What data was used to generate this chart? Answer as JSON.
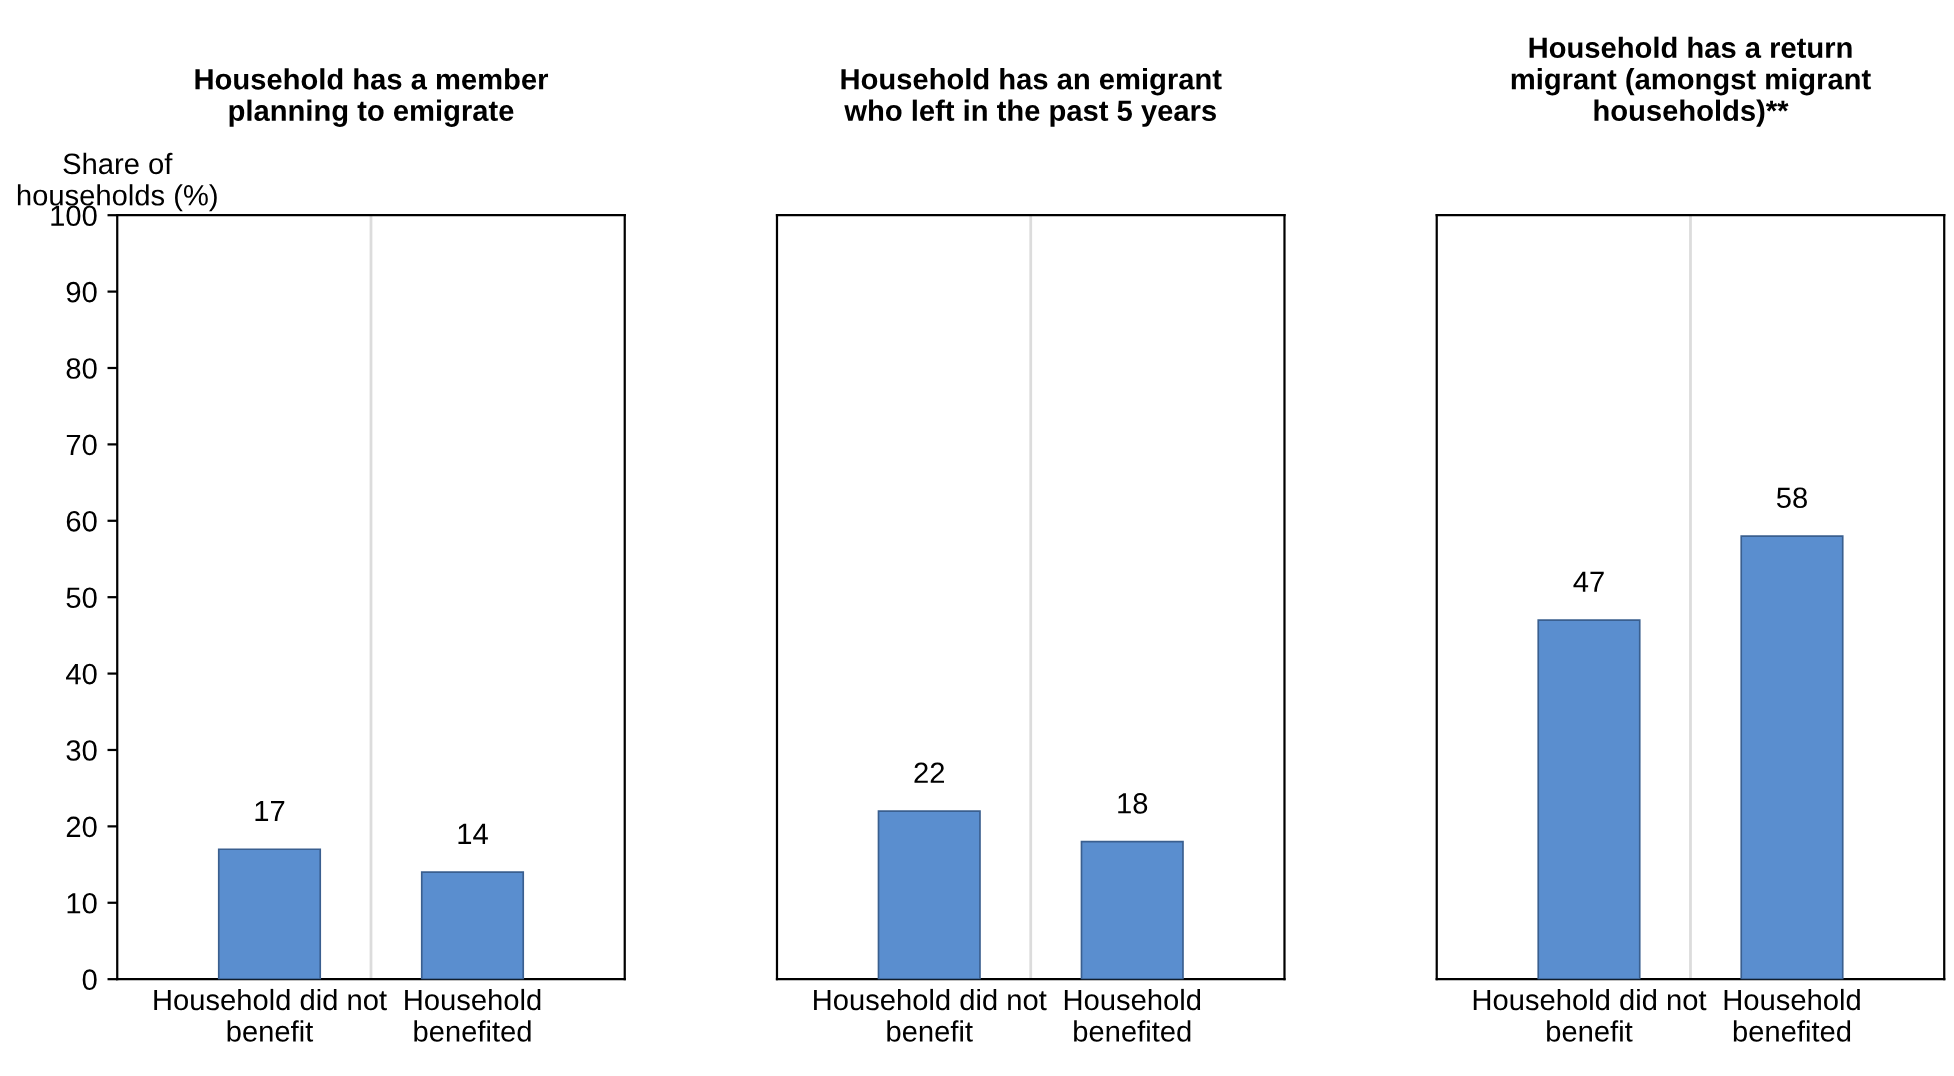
{
  "chart_data": [
    {
      "type": "bar",
      "title": "Household has a member\nplanning to emigrate",
      "ylabel": "Share of\nhouseholds (%)",
      "categories": [
        "Household did not\nbenefit",
        "Household\nbenefited"
      ],
      "values": [
        17,
        14
      ],
      "color": "#5a8ecf",
      "ylim": [
        0,
        100
      ],
      "yticks": [
        0,
        10,
        20,
        30,
        40,
        50,
        60,
        70,
        80,
        90,
        100
      ],
      "data_labels": true,
      "grid": "x"
    },
    {
      "type": "bar",
      "title": "Household has an emigrant\nwho left in the past 5 years",
      "categories": [
        "Household did not\nbenefit",
        "Household\nbenefited"
      ],
      "values": [
        22,
        18
      ],
      "color": "#5a8ecf",
      "ylim": [
        0,
        100
      ],
      "yticks": [
        0,
        10,
        20,
        30,
        40,
        50,
        60,
        70,
        80,
        90,
        100
      ],
      "data_labels": true,
      "grid": "x",
      "tick_labels": "x"
    },
    {
      "type": "bar",
      "title": "Household has a return\nmigrant (amongst migrant\nhouseholds)**",
      "categories": [
        "Household did not\nbenefit",
        "Household\nbenefited"
      ],
      "values": [
        47,
        58
      ],
      "color": "#5a8ecf",
      "ylim": [
        0,
        100
      ],
      "yticks": [
        0,
        10,
        20,
        30,
        40,
        50,
        60,
        70,
        80,
        90,
        100
      ],
      "data_labels": true,
      "grid": "x",
      "tick_labels": "x"
    }
  ]
}
